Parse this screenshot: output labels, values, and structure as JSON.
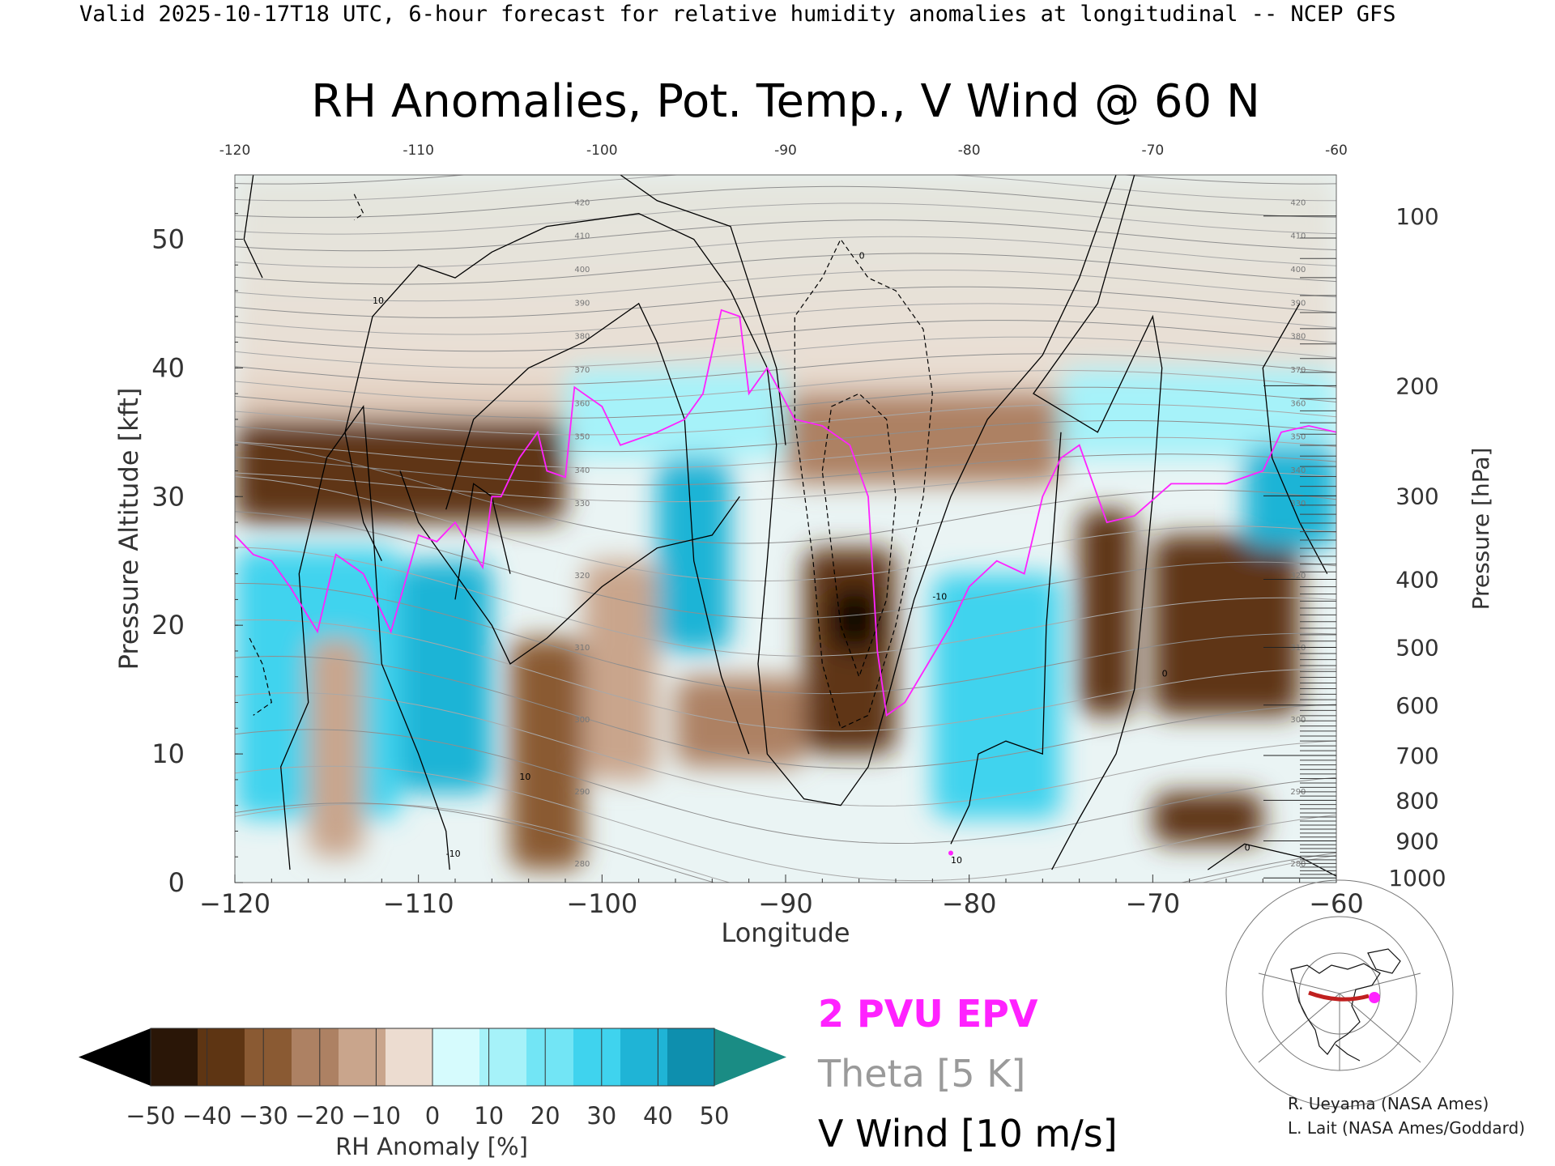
{
  "header_text": "Valid 2025-10-17T18 UTC, 6-hour forecast for relative humidity anomalies at longitudinal -- NCEP GFS",
  "credits": [
    "R. Ueyama (NASA Ames)",
    "L. Lait (NASA Ames/Goddard)"
  ],
  "legend": {
    "epv_label": "2 PVU EPV",
    "theta_label": "Theta [5 K]",
    "vwind_label": "V Wind [10 m/s]",
    "colors": {
      "epv": "#ff22ff",
      "theta": "#9a9a9a",
      "vwind": "#000000"
    }
  },
  "colorbar": {
    "label": "RH Anomaly [%]",
    "ticks": [
      "-50",
      "-40",
      "-30",
      "-20",
      "-10",
      "0",
      "10",
      "20",
      "30",
      "40",
      "50"
    ],
    "under_color": "#000000",
    "over_color": "#1a8c84",
    "colors": [
      "#2a1607",
      "#5e3513",
      "#8a5a33",
      "#ad8163",
      "#c9a58c",
      "#ecdcd0",
      "#d6fbfd",
      "#a6f2f9",
      "#72e5f5",
      "#3fd3ee",
      "#1fb4d6",
      "#0e8fae"
    ]
  },
  "chart_data": {
    "type": "heatmap",
    "title": "RH Anomalies, Pot. Temp., V Wind @ 60 N",
    "xlabel": "Longitude",
    "ylabel": "Pressure Altitude [kft]",
    "y2label": "Pressure [hPa]",
    "xlim": [
      -120,
      -60
    ],
    "ylim": [
      0,
      55
    ],
    "xticks": [
      -120,
      -110,
      -100,
      -90,
      -80,
      -70,
      -60
    ],
    "xtick_labels": [
      "−120",
      "−110",
      "−100",
      "−90",
      "−80",
      "−70",
      "−60"
    ],
    "yticks": [
      0,
      10,
      20,
      30,
      40,
      50
    ],
    "pressure_ticks": [
      100,
      200,
      300,
      400,
      500,
      600,
      700,
      800,
      900,
      1000
    ],
    "theta_levels": [
      280,
      290,
      300,
      310,
      320,
      330,
      340,
      350,
      360,
      370,
      380,
      390,
      400,
      410,
      420
    ],
    "theta_labels_shown": [
      "420",
      "410",
      "400",
      "390",
      "380",
      "370",
      "360",
      "350",
      "340",
      "330",
      "320",
      "310",
      "300",
      "290",
      "280"
    ],
    "vwind_contour_labels": [
      "10",
      "0",
      "-10"
    ],
    "epv_contour_2pvu": [
      [
        -120,
        27
      ],
      [
        -119,
        25.5
      ],
      [
        -118,
        25
      ],
      [
        -117,
        23
      ],
      [
        -115.5,
        19.5
      ],
      [
        -114.5,
        25.5
      ],
      [
        -113,
        24
      ],
      [
        -111.5,
        19.5
      ],
      [
        -110,
        27
      ],
      [
        -109,
        26.5
      ],
      [
        -108,
        28
      ],
      [
        -106.5,
        24.5
      ],
      [
        -106,
        30
      ],
      [
        -105.5,
        30
      ],
      [
        -104.5,
        33
      ],
      [
        -103.5,
        35
      ],
      [
        -103,
        32
      ],
      [
        -102,
        31.5
      ],
      [
        -101.5,
        38.5
      ],
      [
        -100,
        37
      ],
      [
        -99,
        34
      ],
      [
        -97,
        35
      ],
      [
        -95.5,
        36
      ],
      [
        -94.5,
        38
      ],
      [
        -93.5,
        44.5
      ],
      [
        -92.5,
        44
      ],
      [
        -92,
        38
      ],
      [
        -91,
        40
      ],
      [
        -89.5,
        36
      ],
      [
        -88,
        35.5
      ],
      [
        -86.5,
        34
      ],
      [
        -85.5,
        30
      ],
      [
        -85,
        18
      ],
      [
        -84.5,
        13
      ],
      [
        -83.5,
        14
      ],
      [
        -81,
        20
      ],
      [
        -80,
        23
      ],
      [
        -78.5,
        25
      ],
      [
        -77,
        24
      ],
      [
        -76,
        30
      ],
      [
        -75,
        33
      ],
      [
        -74,
        34
      ],
      [
        -72.5,
        28
      ],
      [
        -71,
        28.5
      ],
      [
        -69,
        31
      ],
      [
        -66,
        31
      ],
      [
        -64,
        32
      ],
      [
        -63,
        35
      ],
      [
        -61.5,
        35.5
      ],
      [
        -60,
        35
      ]
    ],
    "rh_anomaly_cells": [
      {
        "x0": -120,
        "x1": -60,
        "y0": 35,
        "y1": 55,
        "value": -10
      },
      {
        "x0": -120,
        "x1": -102,
        "y0": 28,
        "y1": 36,
        "value": -35
      },
      {
        "x0": -102,
        "x1": -90,
        "y0": 33,
        "y1": 40,
        "value": 15
      },
      {
        "x0": -90,
        "x1": -75,
        "y0": 31,
        "y1": 38,
        "value": -25
      },
      {
        "x0": -75,
        "x1": -60,
        "y0": 33,
        "y1": 40,
        "value": 10
      },
      {
        "x0": -120,
        "x1": -111,
        "y0": 5,
        "y1": 26,
        "value": 25
      },
      {
        "x0": -116,
        "x1": -113,
        "y0": 2,
        "y1": 19,
        "value": -15
      },
      {
        "x0": -111,
        "x1": -106,
        "y0": 7,
        "y1": 25,
        "value": 35
      },
      {
        "x0": -105,
        "x1": -101,
        "y0": 1,
        "y1": 19,
        "value": -30
      },
      {
        "x0": -101,
        "x1": -97,
        "y0": 8,
        "y1": 25,
        "value": -10
      },
      {
        "x0": -97,
        "x1": -93,
        "y0": 18,
        "y1": 33,
        "value": 35
      },
      {
        "x0": -96,
        "x1": -89,
        "y0": 9,
        "y1": 16,
        "value": -25
      },
      {
        "x0": -89,
        "x1": -84,
        "y0": 10,
        "y1": 26,
        "value": -40
      },
      {
        "x0": -87.5,
        "x1": -85,
        "y0": 18,
        "y1": 23,
        "value": -55
      },
      {
        "x0": -82,
        "x1": -75,
        "y0": 5,
        "y1": 24,
        "value": 30
      },
      {
        "x0": -74,
        "x1": -71,
        "y0": 13,
        "y1": 29,
        "value": -35
      },
      {
        "x0": -68.5,
        "x1": -64,
        "y0": 17,
        "y1": 23,
        "value": -55
      },
      {
        "x0": -70,
        "x1": -62,
        "y0": 13,
        "y1": 27,
        "value": -40
      },
      {
        "x0": -70,
        "x1": -64,
        "y0": 3,
        "y1": 7,
        "value": -40
      },
      {
        "x0": -65,
        "x1": -60,
        "y0": 26,
        "y1": 34,
        "value": 40
      }
    ]
  }
}
